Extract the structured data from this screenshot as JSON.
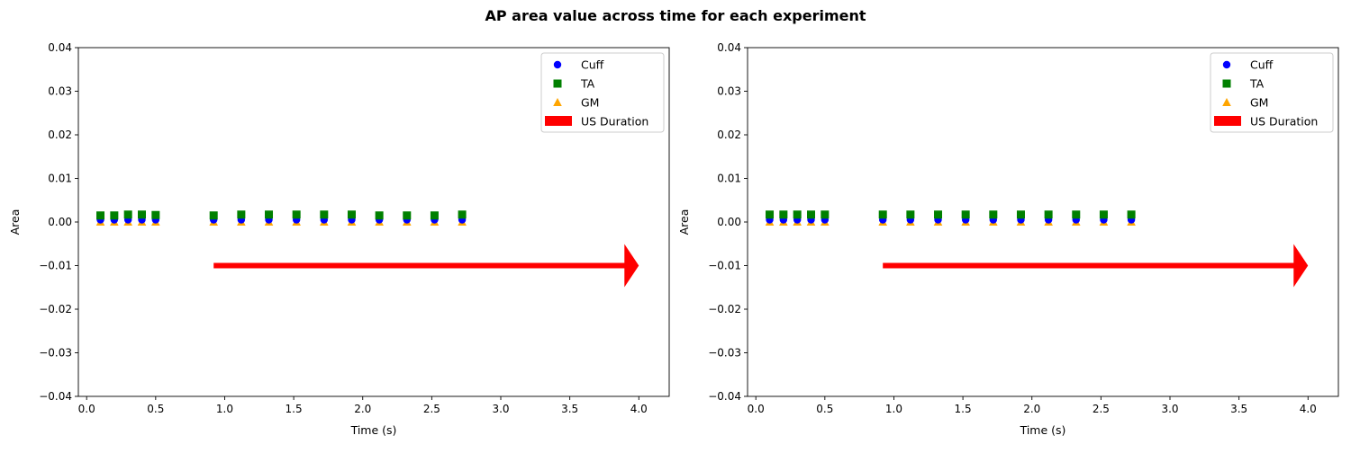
{
  "figure": {
    "title": "AP area value across time for each experiment"
  },
  "chart_data": [
    {
      "type": "scatter",
      "xlabel": "Time (s)",
      "ylabel": "Area",
      "xlim": [
        -0.06,
        4.22
      ],
      "ylim": [
        -0.04,
        0.04
      ],
      "xticks": [
        0.0,
        0.5,
        1.0,
        1.5,
        2.0,
        2.5,
        3.0,
        3.5,
        4.0
      ],
      "xtick_labels": [
        "0.0",
        "0.5",
        "1.0",
        "1.5",
        "2.0",
        "2.5",
        "3.0",
        "3.5",
        "4.0"
      ],
      "yticks": [
        0.04,
        0.03,
        0.02,
        0.01,
        0.0,
        -0.01,
        -0.02,
        -0.03,
        -0.04
      ],
      "ytick_labels": [
        "0.04",
        "0.03",
        "0.02",
        "0.01",
        "0.00",
        "−0.01",
        "−0.02",
        "−0.03",
        "−0.04"
      ],
      "legend_position": "top-right",
      "series": [
        {
          "name": "Cuff",
          "marker": "circle",
          "color": "#0000ff",
          "x": [
            0.1,
            0.2,
            0.3,
            0.4,
            0.5,
            0.92,
            1.12,
            1.32,
            1.52,
            1.72,
            1.92,
            2.12,
            2.32,
            2.52,
            2.72
          ],
          "y": [
            0.0005,
            0.0005,
            0.0005,
            0.0005,
            0.0005,
            0.0005,
            0.0005,
            0.0005,
            0.0005,
            0.0005,
            0.0005,
            0.0005,
            0.0005,
            0.0005,
            0.0005
          ]
        },
        {
          "name": "TA",
          "marker": "square",
          "color": "#008000",
          "x": [
            0.1,
            0.2,
            0.3,
            0.4,
            0.5,
            0.92,
            1.12,
            1.32,
            1.52,
            1.72,
            1.92,
            2.12,
            2.32,
            2.52,
            2.72
          ],
          "y": [
            0.0015,
            0.0015,
            0.0017,
            0.0017,
            0.0016,
            0.0015,
            0.0017,
            0.0017,
            0.0017,
            0.0017,
            0.0017,
            0.0015,
            0.0015,
            0.0015,
            0.0017
          ]
        },
        {
          "name": "GM",
          "marker": "triangle",
          "color": "#ffa500",
          "x": [
            0.1,
            0.2,
            0.3,
            0.4,
            0.5,
            0.92,
            1.12,
            1.32,
            1.52,
            1.72,
            1.92,
            2.12,
            2.32,
            2.52,
            2.72
          ],
          "y": [
            0.0,
            0.0,
            0.0,
            0.0,
            0.0,
            0.0,
            0.0,
            0.0,
            0.0,
            0.0,
            0.0,
            0.0,
            0.0,
            0.0,
            0.0
          ]
        }
      ],
      "arrow": {
        "name": "US Duration",
        "color": "#ff0000",
        "x_start": 0.92,
        "x_end": 4.0,
        "y": -0.01
      }
    },
    {
      "type": "scatter",
      "xlabel": "Time (s)",
      "ylabel": "Area",
      "xlim": [
        -0.06,
        4.22
      ],
      "ylim": [
        -0.04,
        0.04
      ],
      "xticks": [
        0.0,
        0.5,
        1.0,
        1.5,
        2.0,
        2.5,
        3.0,
        3.5,
        4.0
      ],
      "xtick_labels": [
        "0.0",
        "0.5",
        "1.0",
        "1.5",
        "2.0",
        "2.5",
        "3.0",
        "3.5",
        "4.0"
      ],
      "yticks": [
        0.04,
        0.03,
        0.02,
        0.01,
        0.0,
        -0.01,
        -0.02,
        -0.03,
        -0.04
      ],
      "ytick_labels": [
        "0.04",
        "0.03",
        "0.02",
        "0.01",
        "0.00",
        "−0.01",
        "−0.02",
        "−0.03",
        "−0.04"
      ],
      "legend_position": "top-right",
      "series": [
        {
          "name": "Cuff",
          "marker": "circle",
          "color": "#0000ff",
          "x": [
            0.1,
            0.2,
            0.3,
            0.4,
            0.5,
            0.92,
            1.12,
            1.32,
            1.52,
            1.72,
            1.92,
            2.12,
            2.32,
            2.52,
            2.72
          ],
          "y": [
            0.0005,
            0.0005,
            0.0005,
            0.0005,
            0.0005,
            0.0005,
            0.0005,
            0.0005,
            0.0005,
            0.0005,
            0.0005,
            0.0005,
            0.0005,
            0.0005,
            0.0005
          ]
        },
        {
          "name": "TA",
          "marker": "square",
          "color": "#008000",
          "x": [
            0.1,
            0.2,
            0.3,
            0.4,
            0.5,
            0.92,
            1.12,
            1.32,
            1.52,
            1.72,
            1.92,
            2.12,
            2.32,
            2.52,
            2.72
          ],
          "y": [
            0.0017,
            0.0017,
            0.0017,
            0.0017,
            0.0017,
            0.0017,
            0.0017,
            0.0017,
            0.0017,
            0.0017,
            0.0017,
            0.0017,
            0.0017,
            0.0017,
            0.0017
          ]
        },
        {
          "name": "GM",
          "marker": "triangle",
          "color": "#ffa500",
          "x": [
            0.1,
            0.2,
            0.3,
            0.4,
            0.5,
            0.92,
            1.12,
            1.32,
            1.52,
            1.72,
            1.92,
            2.12,
            2.32,
            2.52,
            2.72
          ],
          "y": [
            0.0,
            0.0,
            0.0,
            0.0,
            0.0,
            0.0,
            0.0,
            0.0,
            0.0,
            0.0,
            0.0,
            0.0,
            0.0,
            0.0,
            0.0
          ]
        }
      ],
      "arrow": {
        "name": "US Duration",
        "color": "#ff0000",
        "x_start": 0.92,
        "x_end": 4.0,
        "y": -0.01
      }
    }
  ]
}
